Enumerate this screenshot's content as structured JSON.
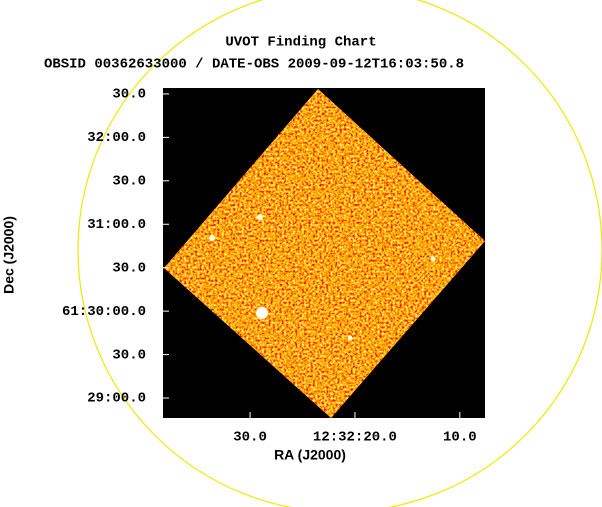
{
  "chart_data": {
    "type": "image",
    "title": "UVOT Finding Chart",
    "subtitle": "OBSID 00362633000 / DATE-OBS 2009-09-12T16:03:50.8",
    "x_label": "RA (J2000)",
    "y_label": "Dec (J2000)",
    "xlim": [
      38.3,
      7.6
    ],
    "xticks": [
      {
        "value": 30,
        "label": "30.0"
      },
      {
        "value": 20,
        "label": "12:32:20.0"
      },
      {
        "value": 10,
        "label": "10.0"
      }
    ],
    "ylim": [
      1726.2,
      1954.1
    ],
    "yticks": [
      {
        "value": 1950,
        "label": "30.0"
      },
      {
        "value": 1920,
        "label": "32:00.0"
      },
      {
        "value": 1890,
        "label": "30.0"
      },
      {
        "value": 1860,
        "label": "31:00.0"
      },
      {
        "value": 1830,
        "label": "30.0"
      },
      {
        "value": 1800,
        "label": "61:30:00.0"
      },
      {
        "value": 1770,
        "label": "30.0"
      },
      {
        "value": 1740,
        "label": "29:00.0"
      }
    ],
    "grid": false
  }
}
